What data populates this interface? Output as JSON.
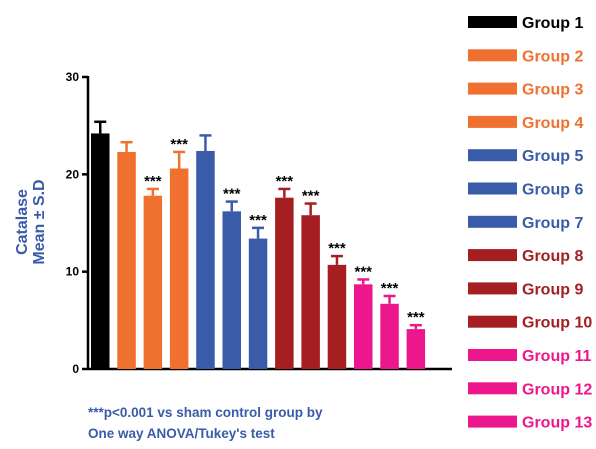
{
  "colors": {
    "black": "#000000",
    "orange": "#f07030",
    "blue": "#3a5ba8",
    "darkred": "#a41e22",
    "pink": "#ec178c",
    "axis": "#000000",
    "error_bar": {
      "black": "#000000",
      "orange": "#f07030",
      "blue": "#3a5ba8",
      "darkred": "#a41e22",
      "pink": "#ec178c"
    }
  },
  "footnote": {
    "line1": "***p<0.001 vs sham control group by",
    "line2": "One way ANOVA/Tukey's test"
  },
  "chart_data": {
    "type": "bar",
    "title": "",
    "xlabel": "",
    "ylabel_line1": "Catalase",
    "ylabel_line2": "Mean ± S.D",
    "ylim": [
      0,
      30
    ],
    "yticks": [
      0,
      10,
      20,
      30
    ],
    "grid": false,
    "legend_position": "right",
    "categories": [
      "Group 1",
      "Group 2",
      "Group 3",
      "Group 4",
      "Group 5",
      "Group 6",
      "Group 7",
      "Group 8",
      "Group 9",
      "Group 10",
      "Group 11",
      "Group 12",
      "Group 13"
    ],
    "values": [
      24.2,
      22.3,
      17.8,
      20.6,
      22.4,
      16.2,
      13.4,
      17.6,
      15.8,
      10.7,
      8.7,
      6.7,
      4.1
    ],
    "errors": [
      1.2,
      1.0,
      0.7,
      1.7,
      1.6,
      1.0,
      1.1,
      0.9,
      1.2,
      0.9,
      0.5,
      0.8,
      0.4
    ],
    "bar_colors": [
      "black",
      "orange",
      "orange",
      "orange",
      "blue",
      "blue",
      "blue",
      "darkred",
      "darkred",
      "darkred",
      "pink",
      "pink",
      "pink"
    ],
    "significance": [
      "",
      "",
      "***",
      "***",
      "",
      "***",
      "***",
      "***",
      "***",
      "***",
      "***",
      "***",
      "***"
    ]
  }
}
